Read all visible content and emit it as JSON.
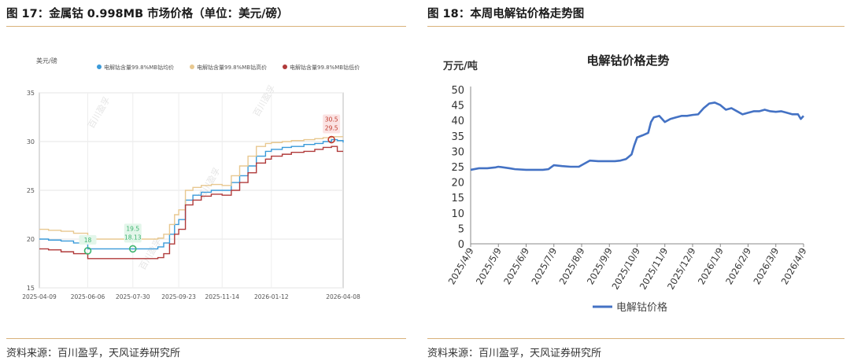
{
  "left_panel": {
    "figure_title": "图 17：金属钴 0.998MB 市场价格（单位：美元/磅）",
    "source": "资料来源：百川盈孚，天风证券研究所"
  },
  "right_panel": {
    "figure_title": "图 18：本周电解钴价格走势图",
    "source": "资料来源：百川盈孚，天风证券研究所"
  },
  "watermark_text": "百川盈孚",
  "chart_data": [
    {
      "type": "line",
      "title": "",
      "ylabel": "美元/磅",
      "xlabel": "",
      "ylim": [
        15,
        35
      ],
      "yticks": [
        15,
        20,
        25,
        30,
        35
      ],
      "xticks": [
        "2025-04-09",
        "2025-06-06",
        "2025-07-30",
        "2025-09-23",
        "2025-11-14",
        "2026-01-12",
        "2026-04-08"
      ],
      "grid": true,
      "legend": "top",
      "x": [
        "2025-04-09",
        "2025-04-20",
        "2025-05-05",
        "2025-05-20",
        "2025-06-06",
        "2025-06-20",
        "2025-07-05",
        "2025-07-30",
        "2025-08-15",
        "2025-08-29",
        "2025-09-05",
        "2025-09-12",
        "2025-09-18",
        "2025-09-23",
        "2025-10-01",
        "2025-10-10",
        "2025-10-20",
        "2025-11-01",
        "2025-11-14",
        "2025-11-25",
        "2025-12-05",
        "2025-12-15",
        "2025-12-25",
        "2026-01-05",
        "2026-01-12",
        "2026-01-25",
        "2026-02-05",
        "2026-02-20",
        "2026-03-05",
        "2026-03-15",
        "2026-03-25",
        "2026-04-01",
        "2026-04-08"
      ],
      "series": [
        {
          "name": "电解钴含量99.8%MB钴均价",
          "color": "#3a9ad9",
          "values": [
            20.0,
            19.9,
            19.8,
            19.6,
            19.0,
            19.0,
            19.0,
            19.0,
            19.0,
            19.2,
            19.6,
            20.5,
            21.5,
            22.0,
            24.0,
            24.5,
            24.8,
            25.0,
            25.0,
            25.8,
            26.5,
            27.5,
            28.5,
            29.0,
            29.2,
            29.4,
            29.5,
            29.7,
            29.8,
            30.0,
            30.2,
            30.1,
            29.9
          ]
        },
        {
          "name": "电解钴含量99.8%MB钴高价",
          "color": "#e8c890",
          "values": [
            21.0,
            20.9,
            20.8,
            20.6,
            20.0,
            20.0,
            20.0,
            20.0,
            20.0,
            20.1,
            20.5,
            21.5,
            22.5,
            23.0,
            25.0,
            25.3,
            25.5,
            25.6,
            25.5,
            26.5,
            27.5,
            28.5,
            29.5,
            29.8,
            29.9,
            30.0,
            30.1,
            30.2,
            30.3,
            30.4,
            30.5,
            30.5,
            30.5
          ]
        },
        {
          "name": "电解钴含量99.8%MB钴低价",
          "color": "#b03a3a",
          "values": [
            19.0,
            18.9,
            18.7,
            18.5,
            18.0,
            18.0,
            18.0,
            18.0,
            18.0,
            18.1,
            18.5,
            19.5,
            20.5,
            21.0,
            23.5,
            24.0,
            24.4,
            24.6,
            24.5,
            25.0,
            25.8,
            26.8,
            27.8,
            28.2,
            28.5,
            28.7,
            28.9,
            29.0,
            29.2,
            29.4,
            29.5,
            29.0,
            29.0
          ]
        }
      ],
      "annotations": [
        {
          "date": "2025-06-06",
          "label": "18",
          "color": "#3cb46e"
        },
        {
          "date": "2025-07-30",
          "label": "19.5",
          "label2": "18.13",
          "color": "#3cb46e"
        },
        {
          "date": "2026-03-25",
          "label": "30.5",
          "label2": "29.5",
          "color": "#c0392b"
        }
      ]
    },
    {
      "type": "line",
      "title": "电解钴价格走势",
      "ylabel": "万元/吨",
      "xlabel": "",
      "ylim": [
        0,
        50
      ],
      "yticks": [
        0,
        5,
        10,
        15,
        20,
        25,
        30,
        35,
        40,
        45,
        50
      ],
      "xticks": [
        "2025/4/9",
        "2025/5/9",
        "2025/6/9",
        "2025/7/9",
        "2025/8/9",
        "2025/9/9",
        "2025/10/9",
        "2025/11/9",
        "2025/12/9",
        "2026/1/9",
        "2026/2/9",
        "2026/3/9",
        "2026/4/9"
      ],
      "grid": false,
      "legend": "bottom",
      "series": [
        {
          "name": "电解钴价格",
          "color": "#4472c4",
          "x": [
            0,
            0.3,
            0.6,
            0.9,
            1.0,
            1.4,
            1.6,
            2.0,
            2.3,
            2.6,
            2.8,
            3.0,
            3.3,
            3.6,
            3.9,
            4.0,
            4.3,
            4.6,
            4.9,
            5.2,
            5.4,
            5.6,
            5.8,
            5.9,
            6.0,
            6.2,
            6.4,
            6.5,
            6.6,
            6.8,
            7.0,
            7.2,
            7.4,
            7.6,
            7.8,
            8.0,
            8.2,
            8.4,
            8.6,
            8.8,
            9.0,
            9.2,
            9.4,
            9.6,
            9.8,
            10.0,
            10.2,
            10.4,
            10.6,
            10.8,
            11.0,
            11.2,
            11.4,
            11.6,
            11.8,
            11.9,
            12.0
          ],
          "values": [
            24.0,
            24.5,
            24.5,
            24.8,
            25.0,
            24.5,
            24.2,
            24.0,
            24.0,
            24.0,
            24.2,
            25.5,
            25.2,
            25.0,
            25.0,
            25.5,
            27.0,
            26.8,
            26.8,
            26.8,
            27.0,
            27.5,
            29.0,
            32.0,
            34.5,
            35.2,
            36.0,
            39.5,
            41.0,
            41.5,
            39.5,
            40.5,
            41.0,
            41.5,
            41.5,
            41.8,
            42.0,
            44.0,
            45.5,
            45.8,
            45.0,
            43.5,
            44.0,
            43.0,
            42.0,
            42.5,
            43.0,
            43.0,
            43.5,
            43.0,
            42.8,
            43.0,
            42.5,
            42.0,
            42.0,
            40.5,
            41.5
          ]
        }
      ]
    }
  ]
}
